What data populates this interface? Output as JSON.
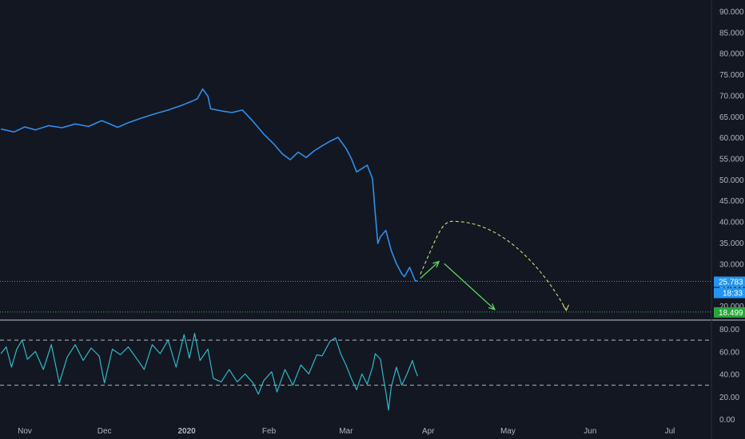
{
  "colors": {
    "background": "#131722",
    "price_line": "#2f8fea",
    "rsi_line": "#2fb8c8",
    "last_price_label": "#2196f3",
    "support_label": "#26a63a",
    "support_line": "#4caf50",
    "forecast_arrow": "#5fd35f",
    "forecast_arc": "#d9d96e",
    "axis_text": "#b2b5be",
    "rsi_band": "#b2b5be",
    "separator": "#bfc3cc"
  },
  "chart_data": [
    {
      "type": "line",
      "panel": "price",
      "x_axis": {
        "type": "time",
        "ticks": [
          {
            "date": "2019-11-01",
            "label": "Nov",
            "bold": false
          },
          {
            "date": "2019-12-01",
            "label": "Dec",
            "bold": false
          },
          {
            "date": "2020-01-01",
            "label": "2020",
            "bold": true
          },
          {
            "date": "2020-02-01",
            "label": "Feb",
            "bold": false
          },
          {
            "date": "2020-03-01",
            "label": "Mar",
            "bold": false
          },
          {
            "date": "2020-04-01",
            "label": "Apr",
            "bold": false
          },
          {
            "date": "2020-05-01",
            "label": "May",
            "bold": false
          },
          {
            "date": "2020-06-01",
            "label": "Jun",
            "bold": false
          },
          {
            "date": "2020-07-01",
            "label": "Jul",
            "bold": false
          }
        ]
      },
      "y_axis": {
        "range": [
          18,
          92
        ],
        "ticks": [
          {
            "value": 20,
            "label": "20.000"
          },
          {
            "value": 25,
            "label": "25.000"
          },
          {
            "value": 30,
            "label": "30.000"
          },
          {
            "value": 35,
            "label": "35.000"
          },
          {
            "value": 40,
            "label": "40.000"
          },
          {
            "value": 45,
            "label": "45.000"
          },
          {
            "value": 50,
            "label": "50.000"
          },
          {
            "value": 55,
            "label": "55.000"
          },
          {
            "value": 60,
            "label": "60.000"
          },
          {
            "value": 65,
            "label": "65.000"
          },
          {
            "value": 70,
            "label": "70.000"
          },
          {
            "value": 75,
            "label": "75.000"
          },
          {
            "value": 80,
            "label": "80.000"
          },
          {
            "value": 85,
            "label": "85.000"
          },
          {
            "value": 90,
            "label": "90.000"
          }
        ]
      },
      "series": [
        {
          "points": [
            [
              "2019-10-23",
              62.0
            ],
            [
              "2019-10-28",
              61.3
            ],
            [
              "2019-11-01",
              62.5
            ],
            [
              "2019-11-05",
              61.8
            ],
            [
              "2019-11-10",
              62.8
            ],
            [
              "2019-11-15",
              62.3
            ],
            [
              "2019-11-20",
              63.2
            ],
            [
              "2019-11-25",
              62.6
            ],
            [
              "2019-11-30",
              64.0
            ],
            [
              "2019-12-03",
              63.2
            ],
            [
              "2019-12-06",
              62.4
            ],
            [
              "2019-12-10",
              63.5
            ],
            [
              "2019-12-15",
              64.6
            ],
            [
              "2019-12-20",
              65.6
            ],
            [
              "2019-12-25",
              66.5
            ],
            [
              "2019-12-30",
              67.6
            ],
            [
              "2020-01-03",
              68.6
            ],
            [
              "2020-01-05",
              69.2
            ],
            [
              "2020-01-07",
              71.5
            ],
            [
              "2020-01-09",
              69.8
            ],
            [
              "2020-01-10",
              66.8
            ],
            [
              "2020-01-14",
              66.3
            ],
            [
              "2020-01-18",
              65.9
            ],
            [
              "2020-01-22",
              66.5
            ],
            [
              "2020-01-26",
              63.8
            ],
            [
              "2020-01-30",
              60.8
            ],
            [
              "2020-02-03",
              58.3
            ],
            [
              "2020-02-06",
              56.1
            ],
            [
              "2020-02-09",
              54.7
            ],
            [
              "2020-02-12",
              56.5
            ],
            [
              "2020-02-15",
              55.2
            ],
            [
              "2020-02-18",
              56.8
            ],
            [
              "2020-02-21",
              58.0
            ],
            [
              "2020-02-24",
              59.1
            ],
            [
              "2020-02-27",
              60.0
            ],
            [
              "2020-03-01",
              57.4
            ],
            [
              "2020-03-03",
              55.0
            ],
            [
              "2020-03-05",
              51.8
            ],
            [
              "2020-03-07",
              52.6
            ],
            [
              "2020-03-09",
              53.4
            ],
            [
              "2020-03-11",
              50.2
            ],
            [
              "2020-03-12",
              42.0
            ],
            [
              "2020-03-13",
              34.8
            ],
            [
              "2020-03-14",
              36.4
            ],
            [
              "2020-03-16",
              37.9
            ],
            [
              "2020-03-18",
              33.2
            ],
            [
              "2020-03-20",
              30.0
            ],
            [
              "2020-03-22",
              27.6
            ],
            [
              "2020-03-23",
              26.9
            ],
            [
              "2020-03-25",
              29.1
            ],
            [
              "2020-03-27",
              26.0
            ],
            [
              "2020-03-28",
              25.8
            ]
          ]
        }
      ],
      "annotations": {
        "last_price": {
          "value": 25.783,
          "label": "25.783",
          "countdown": "18:33"
        },
        "support": {
          "value": 18.499,
          "label": "18.499"
        },
        "forecast_arrows": [
          {
            "from": [
              "2020-03-29",
              26.5
            ],
            "to": [
              "2020-04-05",
              30.5
            ]
          },
          {
            "from": [
              "2020-04-07",
              30.0
            ],
            "to": [
              "2020-04-26",
              19.1
            ]
          }
        ],
        "forecast_arc": {
          "start": [
            "2020-03-29",
            27.5
          ],
          "peak": [
            "2020-04-12",
            40.0
          ],
          "end": [
            "2020-05-23",
            18.9
          ]
        }
      }
    },
    {
      "type": "line",
      "panel": "rsi",
      "y_axis": {
        "range": [
          0,
          84
        ],
        "ticks": [
          {
            "value": 0,
            "label": "0.00"
          },
          {
            "value": 20,
            "label": "20.00"
          },
          {
            "value": 40,
            "label": "40.00"
          },
          {
            "value": 60,
            "label": "60.00"
          },
          {
            "value": 80,
            "label": "80.00"
          }
        ],
        "bands": [
          70,
          30
        ]
      },
      "series": [
        {
          "points": [
            [
              "2019-10-23",
              58
            ],
            [
              "2019-10-25",
              64
            ],
            [
              "2019-10-27",
              46
            ],
            [
              "2019-10-29",
              62
            ],
            [
              "2019-10-31",
              70
            ],
            [
              "2019-11-02",
              53
            ],
            [
              "2019-11-05",
              60
            ],
            [
              "2019-11-08",
              44
            ],
            [
              "2019-11-11",
              66
            ],
            [
              "2019-11-14",
              32
            ],
            [
              "2019-11-17",
              55
            ],
            [
              "2019-11-20",
              66
            ],
            [
              "2019-11-23",
              52
            ],
            [
              "2019-11-26",
              63
            ],
            [
              "2019-11-29",
              56
            ],
            [
              "2019-12-01",
              32
            ],
            [
              "2019-12-04",
              62
            ],
            [
              "2019-12-07",
              57
            ],
            [
              "2019-12-10",
              64
            ],
            [
              "2019-12-13",
              54
            ],
            [
              "2019-12-16",
              44
            ],
            [
              "2019-12-19",
              66
            ],
            [
              "2019-12-22",
              58
            ],
            [
              "2019-12-25",
              70
            ],
            [
              "2019-12-28",
              46
            ],
            [
              "2019-12-31",
              75
            ],
            [
              "2020-01-02",
              54
            ],
            [
              "2020-01-04",
              76
            ],
            [
              "2020-01-06",
              52
            ],
            [
              "2020-01-09",
              62
            ],
            [
              "2020-01-11",
              36
            ],
            [
              "2020-01-14",
              33
            ],
            [
              "2020-01-17",
              44
            ],
            [
              "2020-01-20",
              33
            ],
            [
              "2020-01-23",
              40
            ],
            [
              "2020-01-26",
              32
            ],
            [
              "2020-01-28",
              22
            ],
            [
              "2020-01-30",
              34
            ],
            [
              "2020-02-02",
              42
            ],
            [
              "2020-02-04",
              24
            ],
            [
              "2020-02-07",
              44
            ],
            [
              "2020-02-10",
              30
            ],
            [
              "2020-02-13",
              48
            ],
            [
              "2020-02-16",
              40
            ],
            [
              "2020-02-19",
              57
            ],
            [
              "2020-02-21",
              56
            ],
            [
              "2020-02-24",
              69
            ],
            [
              "2020-02-26",
              72
            ],
            [
              "2020-02-28",
              58
            ],
            [
              "2020-03-01",
              48
            ],
            [
              "2020-03-03",
              36
            ],
            [
              "2020-03-05",
              26
            ],
            [
              "2020-03-07",
              40
            ],
            [
              "2020-03-09",
              31
            ],
            [
              "2020-03-11",
              46
            ],
            [
              "2020-03-12",
              58
            ],
            [
              "2020-03-14",
              53
            ],
            [
              "2020-03-15",
              38
            ],
            [
              "2020-03-16",
              24
            ],
            [
              "2020-03-17",
              8
            ],
            [
              "2020-03-18",
              28
            ],
            [
              "2020-03-20",
              46
            ],
            [
              "2020-03-22",
              30
            ],
            [
              "2020-03-24",
              40
            ],
            [
              "2020-03-26",
              52
            ],
            [
              "2020-03-27",
              44
            ],
            [
              "2020-03-28",
              38
            ]
          ]
        }
      ]
    }
  ]
}
